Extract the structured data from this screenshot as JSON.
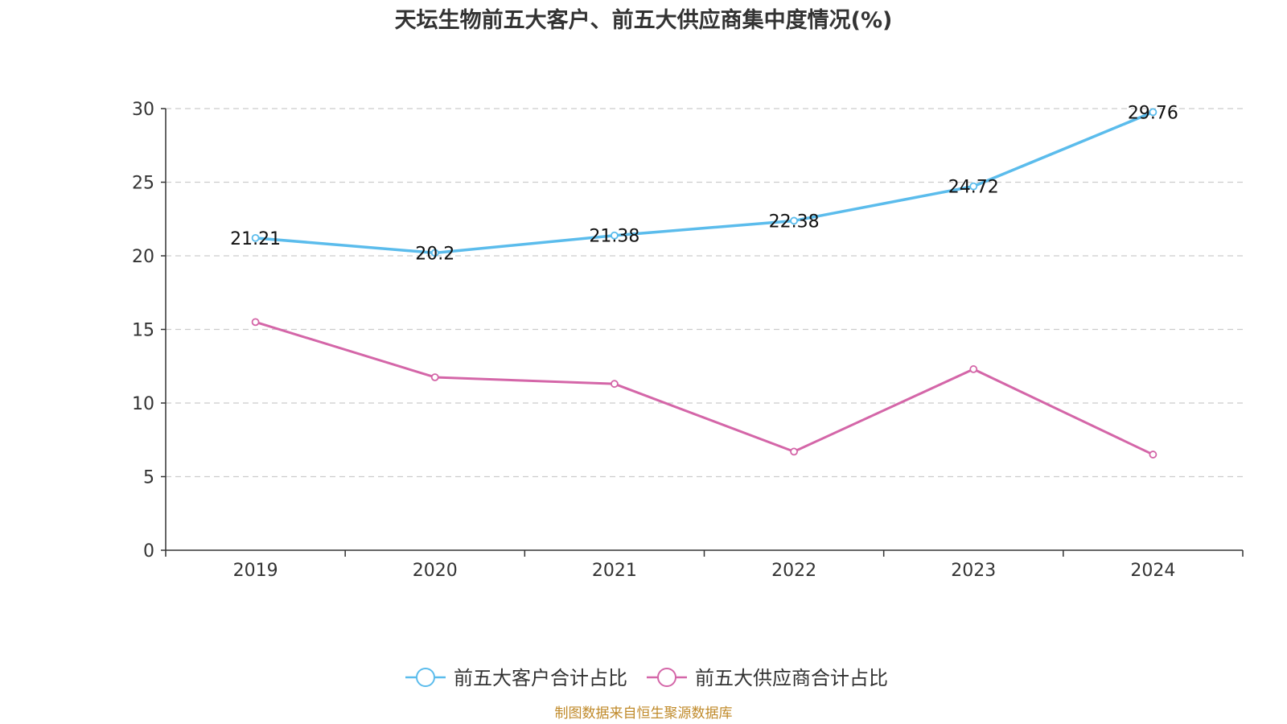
{
  "source": "制图数据来自恒生聚源数据库",
  "colors": {
    "series_0": "#5bbcec",
    "series_1": "#d466a8",
    "source": "#c08a2a",
    "title": "#333333",
    "axis": "#333333",
    "grid": "#cccccc"
  },
  "chart_data": {
    "type": "line",
    "title": "天坛生物前五大客户、前五大供应商集中度情况(%)",
    "xlabel": "",
    "ylabel": "",
    "categories": [
      "2019",
      "2020",
      "2021",
      "2022",
      "2023",
      "2024"
    ],
    "ylim": [
      0,
      30
    ],
    "yticks": [
      0,
      5,
      10,
      15,
      20,
      25,
      30
    ],
    "grid": true,
    "legend_position": "bottom-center",
    "series": [
      {
        "name": "前五大客户合计占比",
        "values": [
          21.21,
          20.2,
          21.38,
          22.38,
          24.72,
          29.76
        ],
        "data_labels": [
          "21.21",
          "20.2",
          "21.38",
          "22.38",
          "24.72",
          "29.76"
        ],
        "show_labels": true
      },
      {
        "name": "前五大供应商合计占比",
        "values": [
          15.5,
          11.75,
          11.3,
          6.7,
          12.3,
          6.5
        ],
        "data_labels": [],
        "show_labels": false
      }
    ]
  }
}
